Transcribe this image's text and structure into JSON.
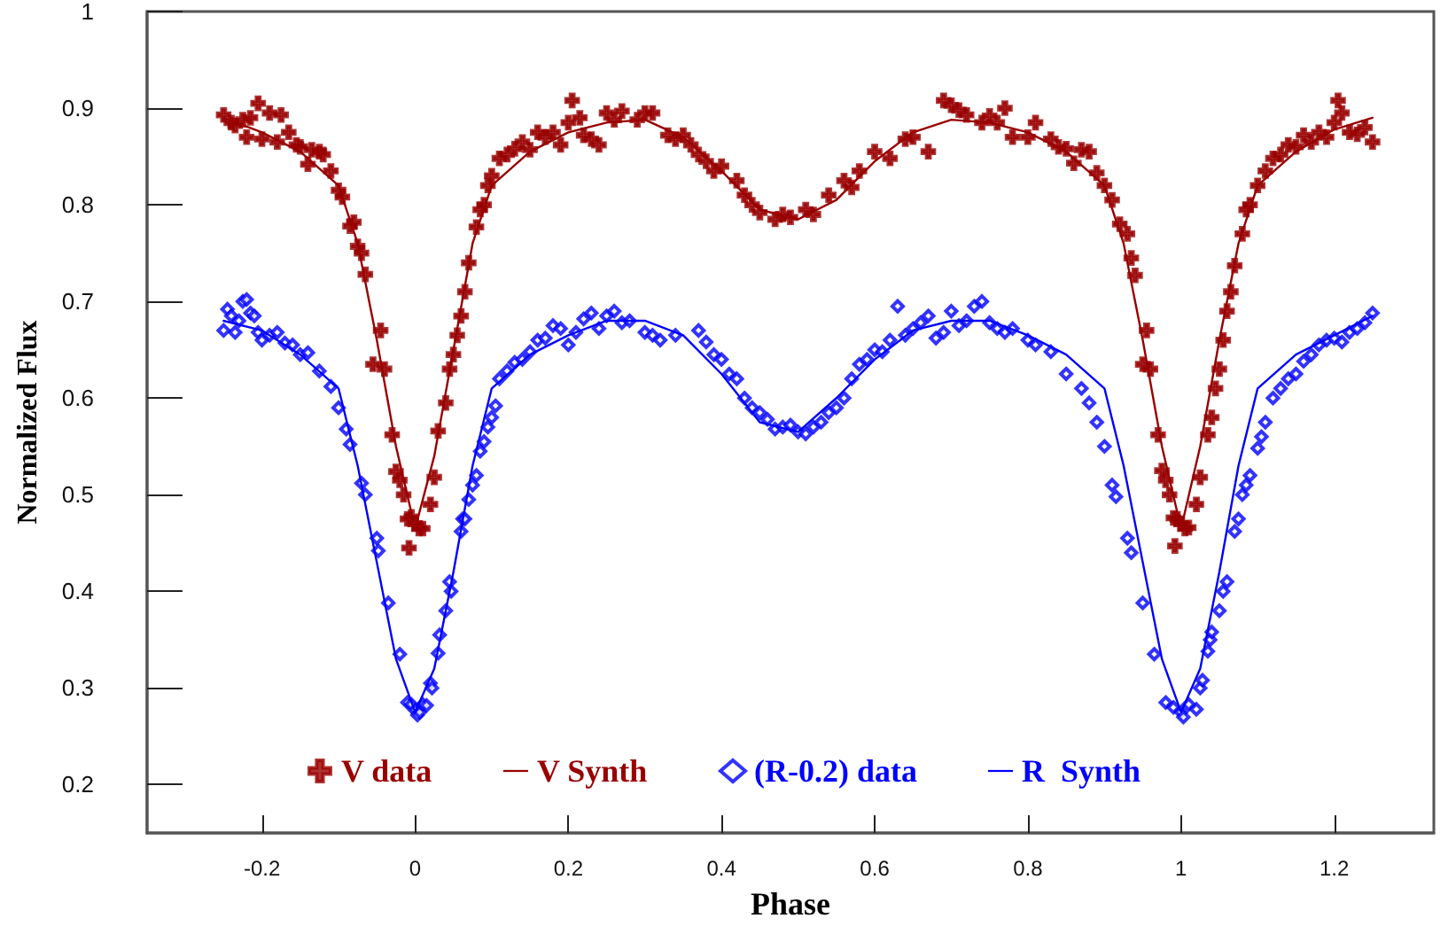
{
  "chart_data": {
    "type": "scatter",
    "xlabel": "Phase",
    "ylabel": "Normalized Flux",
    "xlim": [
      -0.35,
      1.33
    ],
    "xticks": [
      -0.2,
      0,
      0.2,
      0.4,
      0.6,
      0.8,
      1,
      1.2
    ],
    "ylim": [
      0.15,
      1
    ],
    "yticks": [
      0.2,
      0.3,
      0.4,
      0.5,
      0.6,
      0.7,
      0.8,
      0.9,
      1
    ],
    "grid": false,
    "legend": "bottom",
    "series": [
      {
        "name": "V data",
        "marker": "cross",
        "color": "#990000",
        "x": [
          -0.25,
          -0.24,
          -0.235,
          -0.225,
          -0.22,
          -0.215,
          -0.205,
          -0.2,
          -0.19,
          -0.18,
          -0.175,
          -0.165,
          -0.155,
          -0.15,
          -0.14,
          -0.135,
          -0.125,
          -0.12,
          -0.11,
          -0.1,
          -0.095,
          -0.085,
          -0.08,
          -0.075,
          -0.07,
          -0.065,
          -0.055,
          -0.045,
          -0.04,
          -0.03,
          -0.025,
          -0.02,
          -0.015,
          -0.01,
          -0.005,
          0,
          0.005,
          -0.008,
          0.01,
          0.02,
          0.025,
          0.03,
          0.04,
          0.045,
          0.05,
          0.055,
          0.06,
          0.065,
          0.07,
          0.08,
          0.085,
          0.09,
          0.095,
          0.1,
          0.11,
          0.12,
          0.13,
          0.14,
          0.15,
          0.16,
          0.17,
          0.18,
          0.19,
          0.2,
          0.205,
          0.215,
          0.22,
          0.23,
          0.24,
          0.25,
          0.26,
          0.27,
          0.29,
          0.3,
          0.31,
          0.33,
          0.34,
          0.35,
          0.36,
          0.37,
          0.38,
          0.39,
          0.4,
          0.42,
          0.43,
          0.44,
          0.45,
          0.47,
          0.48,
          0.49,
          0.51,
          0.52,
          0.54,
          0.56,
          0.57,
          0.58,
          0.6,
          0.62,
          0.64,
          0.65,
          0.67,
          0.69,
          0.7,
          0.71,
          0.72,
          0.74,
          0.75,
          0.76,
          0.77,
          0.78,
          0.8,
          0.81,
          0.83,
          0.84,
          0.85,
          0.86,
          0.87,
          0.88,
          0.89,
          0.9,
          0.91,
          0.92,
          0.93,
          0.935,
          0.94,
          0.95,
          0.955,
          0.96,
          0.97,
          0.975,
          0.98,
          0.985,
          0.99,
          0.995,
          1,
          1.005,
          0.992,
          1.01,
          1.02,
          1.025,
          1.035,
          1.04,
          1.045,
          1.05,
          1.055,
          1.06,
          1.065,
          1.07,
          1.08,
          1.085,
          1.09,
          1.1,
          1.11,
          1.12,
          1.13,
          1.14,
          1.15,
          1.16,
          1.17,
          1.18,
          1.19,
          1.2,
          1.205,
          1.21,
          1.22,
          1.23,
          1.24,
          1.25
        ],
        "values": [
          0.893,
          0.885,
          0.882,
          0.888,
          0.87,
          0.89,
          0.905,
          0.868,
          0.895,
          0.865,
          0.893,
          0.875,
          0.862,
          0.86,
          0.842,
          0.857,
          0.855,
          0.852,
          0.835,
          0.815,
          0.808,
          0.778,
          0.782,
          0.757,
          0.75,
          0.728,
          0.635,
          0.67,
          0.63,
          0.562,
          0.524,
          0.515,
          0.5,
          0.475,
          0.477,
          0.47,
          0.465,
          0.445,
          0.465,
          0.49,
          0.518,
          0.566,
          0.595,
          0.63,
          0.645,
          0.665,
          0.685,
          0.71,
          0.74,
          0.777,
          0.795,
          0.8,
          0.82,
          0.83,
          0.848,
          0.852,
          0.858,
          0.865,
          0.857,
          0.875,
          0.87,
          0.875,
          0.862,
          0.885,
          0.908,
          0.89,
          0.872,
          0.868,
          0.862,
          0.895,
          0.888,
          0.897,
          0.888,
          0.895,
          0.895,
          0.872,
          0.868,
          0.872,
          0.862,
          0.852,
          0.845,
          0.835,
          0.84,
          0.825,
          0.81,
          0.8,
          0.792,
          0.785,
          0.79,
          0.787,
          0.795,
          0.79,
          0.81,
          0.825,
          0.818,
          0.835,
          0.855,
          0.848,
          0.868,
          0.87,
          0.855,
          0.908,
          0.903,
          0.898,
          0.893,
          0.885,
          0.892,
          0.885,
          0.9,
          0.87,
          0.87,
          0.885,
          0.868,
          0.86,
          0.858,
          0.843,
          0.857,
          0.855,
          0.833,
          0.82,
          0.805,
          0.78,
          0.77,
          0.745,
          0.727,
          0.635,
          0.67,
          0.63,
          0.562,
          0.525,
          0.515,
          0.5,
          0.476,
          0.475,
          0.47,
          0.465,
          0.447,
          0.466,
          0.49,
          0.518,
          0.562,
          0.58,
          0.61,
          0.63,
          0.66,
          0.69,
          0.71,
          0.737,
          0.77,
          0.795,
          0.8,
          0.82,
          0.835,
          0.848,
          0.852,
          0.862,
          0.86,
          0.872,
          0.865,
          0.875,
          0.87,
          0.885,
          0.908,
          0.895,
          0.875,
          0.873,
          0.88,
          0.865
        ]
      },
      {
        "name": "V Synth",
        "type": "line",
        "marker": "none",
        "color": "#990000",
        "x": [
          -0.25,
          -0.2,
          -0.15,
          -0.1,
          -0.075,
          -0.05,
          -0.025,
          0,
          0.025,
          0.05,
          0.075,
          0.1,
          0.15,
          0.2,
          0.25,
          0.3,
          0.35,
          0.4,
          0.45,
          0.5,
          0.55,
          0.6,
          0.65,
          0.7,
          0.75,
          0.8,
          0.85,
          0.9,
          0.925,
          0.95,
          0.975,
          1,
          1.025,
          1.05,
          1.075,
          1.1,
          1.15,
          1.2,
          1.25
        ],
        "values": [
          0.89,
          0.875,
          0.855,
          0.82,
          0.76,
          0.66,
          0.55,
          0.465,
          0.54,
          0.65,
          0.76,
          0.82,
          0.855,
          0.875,
          0.885,
          0.888,
          0.87,
          0.835,
          0.795,
          0.785,
          0.805,
          0.845,
          0.875,
          0.888,
          0.885,
          0.875,
          0.855,
          0.82,
          0.76,
          0.66,
          0.55,
          0.465,
          0.55,
          0.66,
          0.76,
          0.82,
          0.855,
          0.878,
          0.89
        ]
      },
      {
        "name": "(R-0.2) data",
        "marker": "diamond",
        "color": "#0000ff",
        "x": [
          -0.25,
          -0.245,
          -0.24,
          -0.235,
          -0.23,
          -0.225,
          -0.22,
          -0.215,
          -0.21,
          -0.205,
          -0.2,
          -0.19,
          -0.18,
          -0.17,
          -0.16,
          -0.15,
          -0.14,
          -0.125,
          -0.11,
          -0.1,
          -0.09,
          -0.085,
          -0.07,
          -0.065,
          -0.05,
          -0.048,
          -0.035,
          -0.02,
          -0.01,
          -0.005,
          0,
          0.003,
          0.006,
          0.01,
          0.015,
          0.02,
          0.022,
          0.03,
          0.032,
          0.04,
          0.045,
          0.047,
          0.06,
          0.062,
          0.065,
          0.07,
          0.075,
          0.08,
          0.085,
          0.09,
          0.095,
          0.1,
          0.105,
          0.11,
          0.12,
          0.13,
          0.14,
          0.15,
          0.16,
          0.17,
          0.18,
          0.19,
          0.2,
          0.21,
          0.22,
          0.23,
          0.24,
          0.25,
          0.26,
          0.27,
          0.28,
          0.3,
          0.31,
          0.32,
          0.34,
          0.37,
          0.38,
          0.39,
          0.4,
          0.41,
          0.42,
          0.43,
          0.44,
          0.45,
          0.46,
          0.47,
          0.48,
          0.49,
          0.5,
          0.51,
          0.52,
          0.53,
          0.54,
          0.55,
          0.56,
          0.57,
          0.58,
          0.59,
          0.6,
          0.61,
          0.62,
          0.63,
          0.64,
          0.65,
          0.66,
          0.67,
          0.68,
          0.69,
          0.7,
          0.71,
          0.72,
          0.73,
          0.74,
          0.75,
          0.76,
          0.77,
          0.78,
          0.8,
          0.81,
          0.83,
          0.85,
          0.87,
          0.88,
          0.89,
          0.9,
          0.91,
          0.915,
          0.93,
          0.935,
          0.95,
          0.965,
          0.98,
          0.99,
          1,
          1.003,
          1.01,
          1.02,
          1.025,
          1.028,
          1.035,
          1.038,
          1.04,
          1.05,
          1.055,
          1.06,
          1.07,
          1.075,
          1.08,
          1.085,
          1.09,
          1.1,
          1.105,
          1.11,
          1.12,
          1.13,
          1.14,
          1.15,
          1.16,
          1.17,
          1.18,
          1.19,
          1.2,
          1.21,
          1.22,
          1.23,
          1.24,
          1.25
        ],
        "values": [
          0.67,
          0.692,
          0.685,
          0.668,
          0.68,
          0.7,
          0.702,
          0.688,
          0.685,
          0.668,
          0.66,
          0.665,
          0.668,
          0.657,
          0.655,
          0.645,
          0.647,
          0.628,
          0.612,
          0.59,
          0.568,
          0.552,
          0.512,
          0.5,
          0.455,
          0.442,
          0.388,
          0.335,
          0.285,
          0.283,
          0.277,
          0.272,
          0.275,
          0.283,
          0.282,
          0.305,
          0.3,
          0.336,
          0.355,
          0.38,
          0.41,
          0.4,
          0.462,
          0.475,
          0.475,
          0.495,
          0.51,
          0.52,
          0.545,
          0.555,
          0.57,
          0.58,
          0.592,
          0.62,
          0.628,
          0.637,
          0.64,
          0.648,
          0.66,
          0.662,
          0.675,
          0.672,
          0.655,
          0.668,
          0.682,
          0.688,
          0.672,
          0.685,
          0.69,
          0.678,
          0.68,
          0.668,
          0.665,
          0.66,
          0.665,
          0.67,
          0.658,
          0.645,
          0.64,
          0.625,
          0.62,
          0.6,
          0.59,
          0.585,
          0.578,
          0.568,
          0.57,
          0.572,
          0.565,
          0.563,
          0.57,
          0.575,
          0.585,
          0.59,
          0.6,
          0.62,
          0.635,
          0.64,
          0.65,
          0.648,
          0.66,
          0.695,
          0.665,
          0.672,
          0.678,
          0.685,
          0.662,
          0.668,
          0.69,
          0.675,
          0.68,
          0.695,
          0.7,
          0.678,
          0.672,
          0.668,
          0.672,
          0.66,
          0.655,
          0.648,
          0.625,
          0.61,
          0.595,
          0.575,
          0.55,
          0.51,
          0.498,
          0.455,
          0.44,
          0.388,
          0.335,
          0.285,
          0.28,
          0.275,
          0.27,
          0.283,
          0.278,
          0.3,
          0.308,
          0.338,
          0.35,
          0.358,
          0.38,
          0.4,
          0.41,
          0.462,
          0.475,
          0.5,
          0.51,
          0.52,
          0.548,
          0.56,
          0.575,
          0.6,
          0.61,
          0.62,
          0.625,
          0.638,
          0.645,
          0.655,
          0.66,
          0.662,
          0.658,
          0.668,
          0.672,
          0.678,
          0.688
        ]
      },
      {
        "name": "R  Synth",
        "type": "line",
        "marker": "none",
        "color": "#0000ff",
        "x": [
          -0.25,
          -0.2,
          -0.15,
          -0.1,
          -0.075,
          -0.05,
          -0.025,
          0,
          0.025,
          0.05,
          0.075,
          0.1,
          0.15,
          0.2,
          0.25,
          0.3,
          0.35,
          0.4,
          0.45,
          0.5,
          0.55,
          0.6,
          0.65,
          0.7,
          0.75,
          0.8,
          0.85,
          0.9,
          0.925,
          0.95,
          0.975,
          1,
          1.025,
          1.05,
          1.075,
          1.1,
          1.15,
          1.2,
          1.25
        ],
        "values": [
          0.68,
          0.67,
          0.645,
          0.61,
          0.53,
          0.43,
          0.33,
          0.275,
          0.32,
          0.42,
          0.53,
          0.61,
          0.645,
          0.665,
          0.68,
          0.68,
          0.665,
          0.625,
          0.575,
          0.565,
          0.6,
          0.64,
          0.67,
          0.68,
          0.68,
          0.665,
          0.645,
          0.61,
          0.53,
          0.43,
          0.33,
          0.275,
          0.32,
          0.42,
          0.53,
          0.61,
          0.645,
          0.665,
          0.685
        ]
      }
    ]
  }
}
